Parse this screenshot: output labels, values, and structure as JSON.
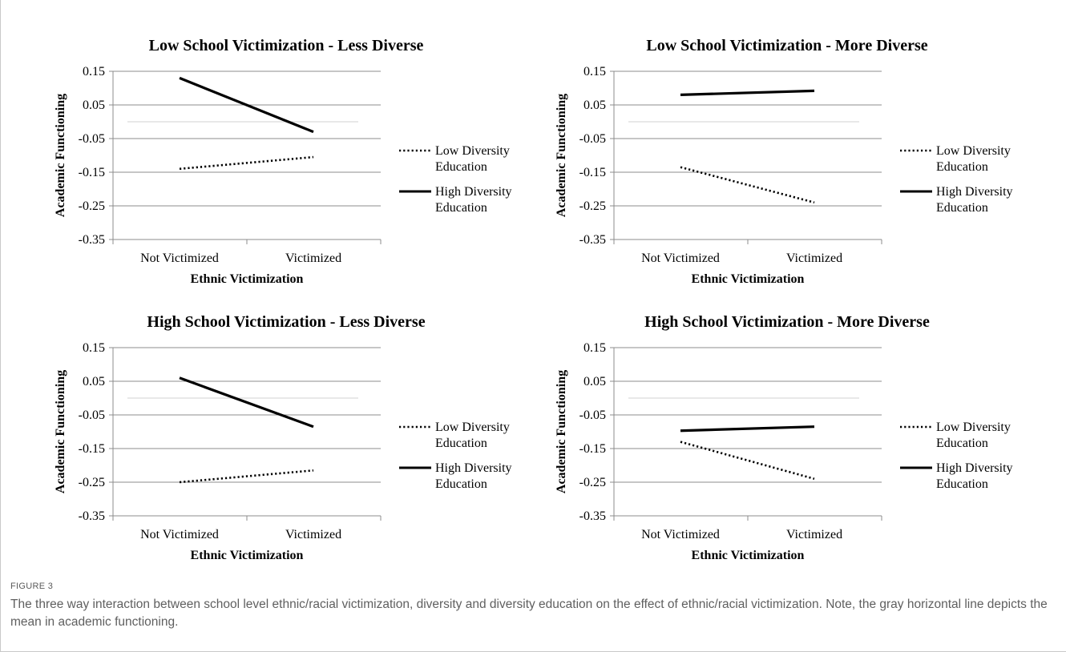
{
  "chart_data": [
    {
      "type": "line",
      "title": "Low School Victimization - Less Diverse",
      "xlabel": "Ethnic Victimization",
      "ylabel": "Academic Functioning",
      "categories": [
        "Not Victimized",
        "Victimized"
      ],
      "yticks": [
        "0.15",
        "0.05",
        "-0.05",
        "-0.15",
        "-0.25",
        "-0.35"
      ],
      "ylim": [
        -0.35,
        0.15
      ],
      "mean_line": 0.0,
      "grid": true,
      "legend_position": "right",
      "series": [
        {
          "name": "Low Diversity Education",
          "style": "dotted",
          "values": [
            -0.14,
            -0.105
          ]
        },
        {
          "name": "High Diversity Education",
          "style": "solid",
          "values": [
            0.13,
            -0.03
          ]
        }
      ]
    },
    {
      "type": "line",
      "title": "Low School Victimization - More Diverse",
      "xlabel": "Ethnic Victimization",
      "ylabel": "Academic Functioning",
      "categories": [
        "Not Victimized",
        "Victimized"
      ],
      "yticks": [
        "0.15",
        "0.05",
        "-0.05",
        "-0.15",
        "-0.25",
        "-0.35"
      ],
      "ylim": [
        -0.35,
        0.15
      ],
      "mean_line": 0.0,
      "grid": true,
      "legend_position": "right",
      "series": [
        {
          "name": "Low Diversity Education",
          "style": "dotted",
          "values": [
            -0.135,
            -0.24
          ]
        },
        {
          "name": "High Diversity Education",
          "style": "solid",
          "values": [
            0.08,
            0.092
          ]
        }
      ]
    },
    {
      "type": "line",
      "title": "High School Victimization - Less Diverse",
      "xlabel": "Ethnic Victimization",
      "ylabel": "Academic Functioning",
      "categories": [
        "Not Victimized",
        "Victimized"
      ],
      "yticks": [
        "0.15",
        "0.05",
        "-0.05",
        "-0.15",
        "-0.25",
        "-0.35"
      ],
      "ylim": [
        -0.35,
        0.15
      ],
      "mean_line": 0.0,
      "grid": true,
      "legend_position": "right",
      "series": [
        {
          "name": "Low Diversity Education",
          "style": "dotted",
          "values": [
            -0.25,
            -0.215
          ]
        },
        {
          "name": "High Diversity Education",
          "style": "solid",
          "values": [
            0.06,
            -0.085
          ]
        }
      ]
    },
    {
      "type": "line",
      "title": "High School Victimization - More Diverse",
      "xlabel": "Ethnic Victimization",
      "ylabel": "Academic Functioning",
      "categories": [
        "Not Victimized",
        "Victimized"
      ],
      "yticks": [
        "0.15",
        "0.05",
        "-0.05",
        "-0.15",
        "-0.25",
        "-0.35"
      ],
      "ylim": [
        -0.35,
        0.15
      ],
      "mean_line": 0.0,
      "grid": true,
      "legend_position": "right",
      "series": [
        {
          "name": "Low Diversity Education",
          "style": "dotted",
          "values": [
            -0.13,
            -0.24
          ]
        },
        {
          "name": "High Diversity Education",
          "style": "solid",
          "values": [
            -0.097,
            -0.085
          ]
        }
      ]
    }
  ],
  "colors": {
    "series_line": "#000000",
    "gridline": "#8c8c8c",
    "mean_line": "#d9d9d9",
    "axis": "#8c8c8c",
    "caption_text": "#5f5f5f"
  },
  "caption": {
    "label": "FIGURE 3",
    "text": "The three way interaction between school level ethnic/racial victimization, diversity and diversity education on the effect of ethnic/racial victimization. Note, the gray horizontal line depicts the mean in academic functioning."
  }
}
